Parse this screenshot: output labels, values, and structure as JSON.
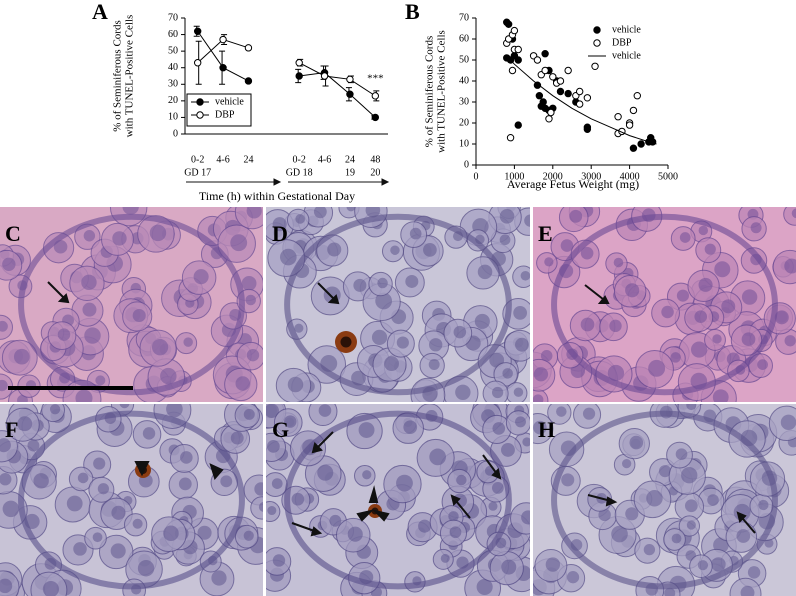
{
  "chart_data": [
    {
      "type": "line",
      "title": "A",
      "y_label": [
        "% of Seminiferous Cords",
        "with TUNEL-Positive Cells"
      ],
      "x_label": "Time (h) within Gestational Day",
      "categories": [
        "0-2",
        "4-6",
        "24",
        null,
        "0-2",
        "4-6",
        "24",
        "48"
      ],
      "category_groups": [
        "GD 17",
        null,
        null,
        null,
        "GD 18",
        null,
        "19",
        "20"
      ],
      "ylim": [
        0,
        70
      ],
      "yticks": [
        0,
        10,
        20,
        30,
        40,
        50,
        60,
        70
      ],
      "legend": "lower left",
      "annotation": "***",
      "series": [
        {
          "name": "vehicle",
          "color": "#000000",
          "marker": "filled",
          "values": [
            62,
            40,
            32,
            null,
            35,
            37,
            24,
            10
          ],
          "errors": [
            3,
            10,
            null,
            null,
            4,
            4,
            4,
            1
          ]
        },
        {
          "name": "DBP",
          "color": "#000000",
          "marker": "open",
          "values": [
            43,
            57,
            52,
            null,
            43,
            35,
            33,
            23
          ],
          "errors": [
            13,
            3,
            null,
            null,
            2,
            6,
            2,
            3
          ]
        }
      ]
    },
    {
      "type": "scatter",
      "title": "B",
      "y_label": [
        "% of Seminiferous Cords",
        "with TUNEL-Positive Cells"
      ],
      "x_label": "Average Fetus Weight (mg)",
      "xlim": [
        0,
        5000
      ],
      "xticks": [
        0,
        1000,
        2000,
        3000,
        4000,
        5000
      ],
      "ylim": [
        0,
        70
      ],
      "yticks": [
        0,
        10,
        20,
        30,
        40,
        50,
        60,
        70
      ],
      "legend": "upper right",
      "series": [
        {
          "name": "vehicle",
          "color": "#000000",
          "marker": "filled",
          "x": [
            800,
            850,
            800,
            900,
            950,
            1000,
            1100,
            1100,
            1600,
            1650,
            1700,
            1750,
            1800,
            1800,
            1900,
            1900,
            2000,
            2100,
            2200,
            2400,
            2600,
            2900,
            2900,
            4100,
            4300,
            4500,
            4600,
            4550
          ],
          "values": [
            68,
            67,
            51,
            50,
            60,
            52,
            19,
            50,
            38,
            33,
            28,
            30,
            53,
            27,
            26,
            45,
            27,
            40,
            35,
            34,
            30,
            17,
            18,
            8,
            10,
            11,
            11,
            13
          ]
        },
        {
          "name": "DBP",
          "color": "#000000",
          "marker": "open",
          "x": [
            800,
            850,
            900,
            950,
            1000,
            950,
            1000,
            1100,
            1500,
            1600,
            1700,
            1800,
            1900,
            1950,
            2000,
            2100,
            2200,
            2400,
            2600,
            2700,
            2700,
            2900,
            3100,
            3700,
            3700,
            3800,
            4000,
            4100,
            4200,
            4000
          ],
          "values": [
            58,
            60,
            13,
            45,
            55,
            62,
            64,
            55,
            52,
            50,
            43,
            45,
            22,
            25,
            42,
            39,
            40,
            45,
            33,
            35,
            29,
            32,
            47,
            23,
            15,
            16,
            20,
            26,
            33,
            19
          ]
        },
        {
          "name": "vehicle",
          "color": "#000000",
          "marker": "line",
          "x": [
            800,
            1000,
            1500,
            2000,
            2500,
            3000,
            3500,
            4000,
            4500,
            4700
          ],
          "values": [
            52,
            48,
            40,
            33,
            27,
            22,
            18,
            14,
            11,
            10
          ]
        }
      ]
    }
  ],
  "panels": [
    "C",
    "D",
    "E",
    "F",
    "G",
    "H"
  ]
}
